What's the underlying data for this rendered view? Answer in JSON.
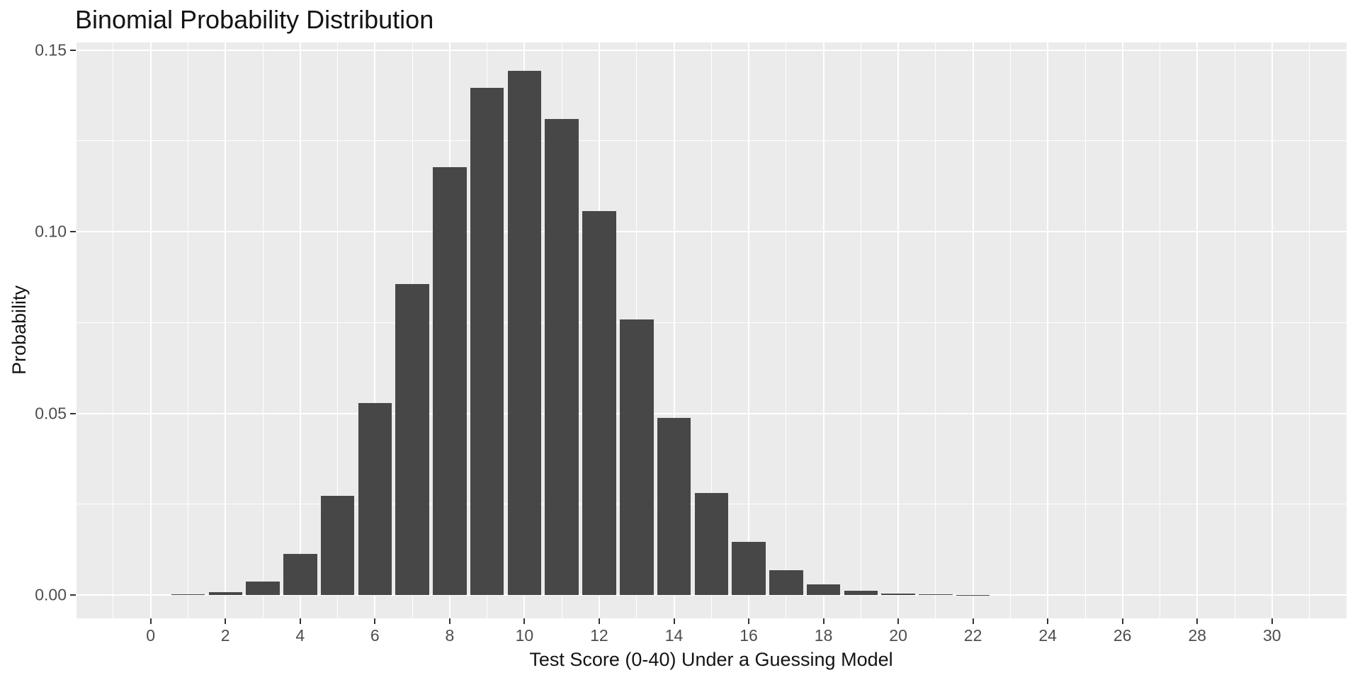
{
  "chart_data": {
    "type": "bar",
    "title": "Binomial Probability Distribution",
    "xlabel": "Test Score (0-40) Under a Guessing Model",
    "ylabel": "Probability",
    "x": [
      0,
      1,
      2,
      3,
      4,
      5,
      6,
      7,
      8,
      9,
      10,
      11,
      12,
      13,
      14,
      15,
      16,
      17,
      18,
      19,
      20,
      21,
      22,
      23,
      24,
      25,
      26,
      27,
      28,
      29,
      30
    ],
    "values": [
      1e-05,
      0.0001339,
      0.0008706,
      0.0036757,
      0.0113334,
      0.0272001,
      0.0528891,
      0.0856309,
      0.1177425,
      0.139547,
      0.1441985,
      0.1310896,
      0.1056,
      0.0758154,
      0.0487385,
      0.02816,
      0.0146667,
      0.006902,
      0.0029397,
      0.0011346,
      0.0003971,
      0.0001261,
      3.63e-05,
      9.5e-06,
      2.2e-06,
      5e-07,
      1e-07,
      0.0,
      0.0,
      0.0,
      0.0
    ],
    "x_ticks": [
      0,
      2,
      4,
      6,
      8,
      10,
      12,
      14,
      16,
      18,
      20,
      22,
      24,
      26,
      28,
      30
    ],
    "x_minor": [
      -1,
      1,
      3,
      5,
      7,
      9,
      11,
      13,
      15,
      17,
      19,
      21,
      23,
      25,
      27,
      29,
      31
    ],
    "y_ticks": [
      0.0,
      0.05,
      0.1,
      0.15
    ],
    "y_tick_labels": [
      "0.00",
      "0.05",
      "0.10",
      "0.15"
    ],
    "y_minor": [
      0.025,
      0.075,
      0.125
    ],
    "bar_width_units": 0.9,
    "xlim": [
      -2,
      32
    ],
    "ylim": [
      -0.0064,
      0.1524
    ],
    "grid": "on",
    "legend": "none",
    "colors": {
      "bar_fill": "#474747",
      "panel_background": "#EBEBEB",
      "gridline": "#FFFFFF",
      "tick_label": "#4D4D4D",
      "tick_mark": "#333333",
      "title_text": "#141414",
      "page_background": "#FFFFFF"
    }
  }
}
